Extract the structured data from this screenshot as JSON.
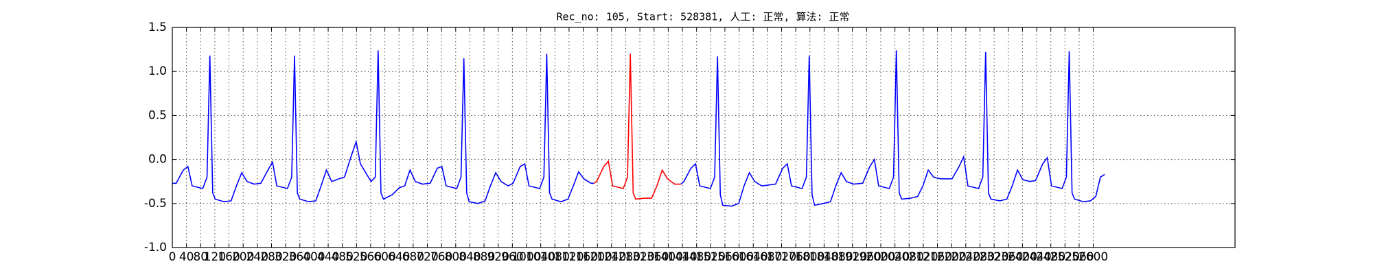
{
  "chart_data": {
    "type": "line",
    "title": "Rec_no: 105, Start: 528381, 人工: 正常, 算法: 正常",
    "xlim": [
      0,
      3000
    ],
    "ylim": [
      -1.0,
      1.5
    ],
    "xticks": [
      0,
      40,
      80,
      120,
      160,
      200,
      240,
      280,
      320,
      360,
      400,
      440,
      480,
      520,
      560,
      600,
      640,
      680,
      720,
      760,
      800,
      840,
      880,
      920,
      960,
      1000,
      1040,
      1080,
      1120,
      1160,
      1200,
      1240,
      1280,
      1320,
      1360,
      1400,
      1440,
      1480,
      1520,
      1560,
      1600,
      1640,
      1680,
      1720,
      1760,
      1800,
      1840,
      1880,
      1920,
      1960,
      2000,
      2040,
      2080,
      2120,
      2160,
      2200,
      2240,
      2280,
      2320,
      2360,
      2400,
      2440,
      2480,
      2520,
      2560,
      2600
    ],
    "yticks": [
      {
        "value": -1.0,
        "label": "-1.0"
      },
      {
        "value": -0.5,
        "label": "-0.5"
      },
      {
        "value": 0.0,
        "label": "0.0"
      },
      {
        "value": 0.5,
        "label": "0.5"
      },
      {
        "value": 1.0,
        "label": "1.0"
      },
      {
        "value": 1.5,
        "label": "1.5"
      }
    ],
    "grid": true,
    "series": [
      {
        "color": "#0000ff",
        "x": [
          0,
          11,
          31,
          44,
          56,
          86,
          98,
          106,
          114,
          121,
          146,
          166,
          181,
          196,
          211,
          231,
          250,
          270,
          283,
          295,
          325,
          337,
          345,
          353,
          360,
          385,
          405,
          420,
          435,
          450,
          470,
          486,
          506,
          519,
          531,
          561,
          573,
          581,
          589,
          596,
          621,
          641,
          656,
          671,
          686,
          706,
          728,
          748,
          761,
          773,
          803,
          815,
          823,
          831,
          838,
          863,
          883,
          898,
          913,
          928,
          948,
          962,
          982,
          995,
          1007,
          1037,
          1049,
          1057,
          1065,
          1072,
          1097,
          1117,
          1132,
          1147,
          1162,
          1182,
          1190
        ],
        "values": [
          -0.27,
          -0.27,
          -0.12,
          -0.08,
          -0.3,
          -0.33,
          -0.2,
          1.18,
          -0.38,
          -0.45,
          -0.48,
          -0.47,
          -0.3,
          -0.15,
          -0.25,
          -0.28,
          -0.27,
          -0.12,
          -0.03,
          -0.3,
          -0.33,
          -0.2,
          1.18,
          -0.38,
          -0.45,
          -0.48,
          -0.47,
          -0.3,
          -0.12,
          -0.25,
          -0.22,
          -0.2,
          0.05,
          0.2,
          -0.05,
          -0.25,
          -0.2,
          1.24,
          -0.38,
          -0.45,
          -0.4,
          -0.32,
          -0.3,
          -0.12,
          -0.25,
          -0.28,
          -0.27,
          -0.1,
          -0.08,
          -0.3,
          -0.33,
          -0.2,
          1.15,
          -0.38,
          -0.48,
          -0.5,
          -0.47,
          -0.3,
          -0.15,
          -0.25,
          -0.3,
          -0.27,
          -0.08,
          -0.05,
          -0.3,
          -0.33,
          -0.2,
          1.2,
          -0.38,
          -0.45,
          -0.48,
          -0.45,
          -0.3,
          -0.14,
          -0.22,
          -0.27,
          -0.27
        ]
      },
      {
        "color": "#ff0000",
        "x": [
          1190,
          1198,
          1218,
          1231,
          1243,
          1273,
          1285,
          1293,
          1301,
          1308,
          1333,
          1353,
          1368,
          1383,
          1398,
          1418,
          1436
        ],
        "values": [
          -0.27,
          -0.25,
          -0.08,
          -0.02,
          -0.3,
          -0.33,
          -0.2,
          1.2,
          -0.38,
          -0.45,
          -0.44,
          -0.44,
          -0.3,
          -0.12,
          -0.22,
          -0.28,
          -0.28
        ]
      },
      {
        "color": "#0000ff",
        "x": [
          1436,
          1444,
          1464,
          1477,
          1489,
          1519,
          1531,
          1539,
          1547,
          1554,
          1579,
          1599,
          1614,
          1629,
          1644,
          1664,
          1703,
          1723,
          1736,
          1748,
          1778,
          1790,
          1798,
          1806,
          1813,
          1838,
          1858,
          1873,
          1888,
          1903,
          1923,
          1949,
          1969,
          1982,
          1994,
          2024,
          2036,
          2044,
          2052,
          2059,
          2084,
          2104,
          2119,
          2134,
          2149,
          2169,
          2201,
          2221,
          2234,
          2246,
          2276,
          2288,
          2296,
          2304,
          2311,
          2336,
          2356,
          2371,
          2386,
          2401,
          2421,
          2437,
          2457,
          2470,
          2482,
          2512,
          2524,
          2532,
          2540,
          2547,
          2572,
          2592,
          2607,
          2620,
          2632
        ],
        "values": [
          -0.28,
          -0.25,
          -0.1,
          -0.05,
          -0.3,
          -0.33,
          -0.2,
          1.17,
          -0.4,
          -0.52,
          -0.53,
          -0.5,
          -0.3,
          -0.15,
          -0.25,
          -0.3,
          -0.28,
          -0.1,
          -0.05,
          -0.3,
          -0.33,
          -0.2,
          1.18,
          -0.4,
          -0.52,
          -0.5,
          -0.48,
          -0.3,
          -0.15,
          -0.25,
          -0.28,
          -0.27,
          -0.08,
          0.0,
          -0.3,
          -0.33,
          -0.2,
          1.24,
          -0.38,
          -0.45,
          -0.44,
          -0.42,
          -0.3,
          -0.12,
          -0.2,
          -0.22,
          -0.22,
          -0.08,
          0.03,
          -0.3,
          -0.33,
          -0.2,
          1.22,
          -0.38,
          -0.45,
          -0.47,
          -0.45,
          -0.3,
          -0.12,
          -0.23,
          -0.25,
          -0.24,
          -0.05,
          0.02,
          -0.3,
          -0.33,
          -0.2,
          1.23,
          -0.38,
          -0.45,
          -0.48,
          -0.47,
          -0.42,
          -0.2,
          -0.17
        ]
      }
    ]
  }
}
